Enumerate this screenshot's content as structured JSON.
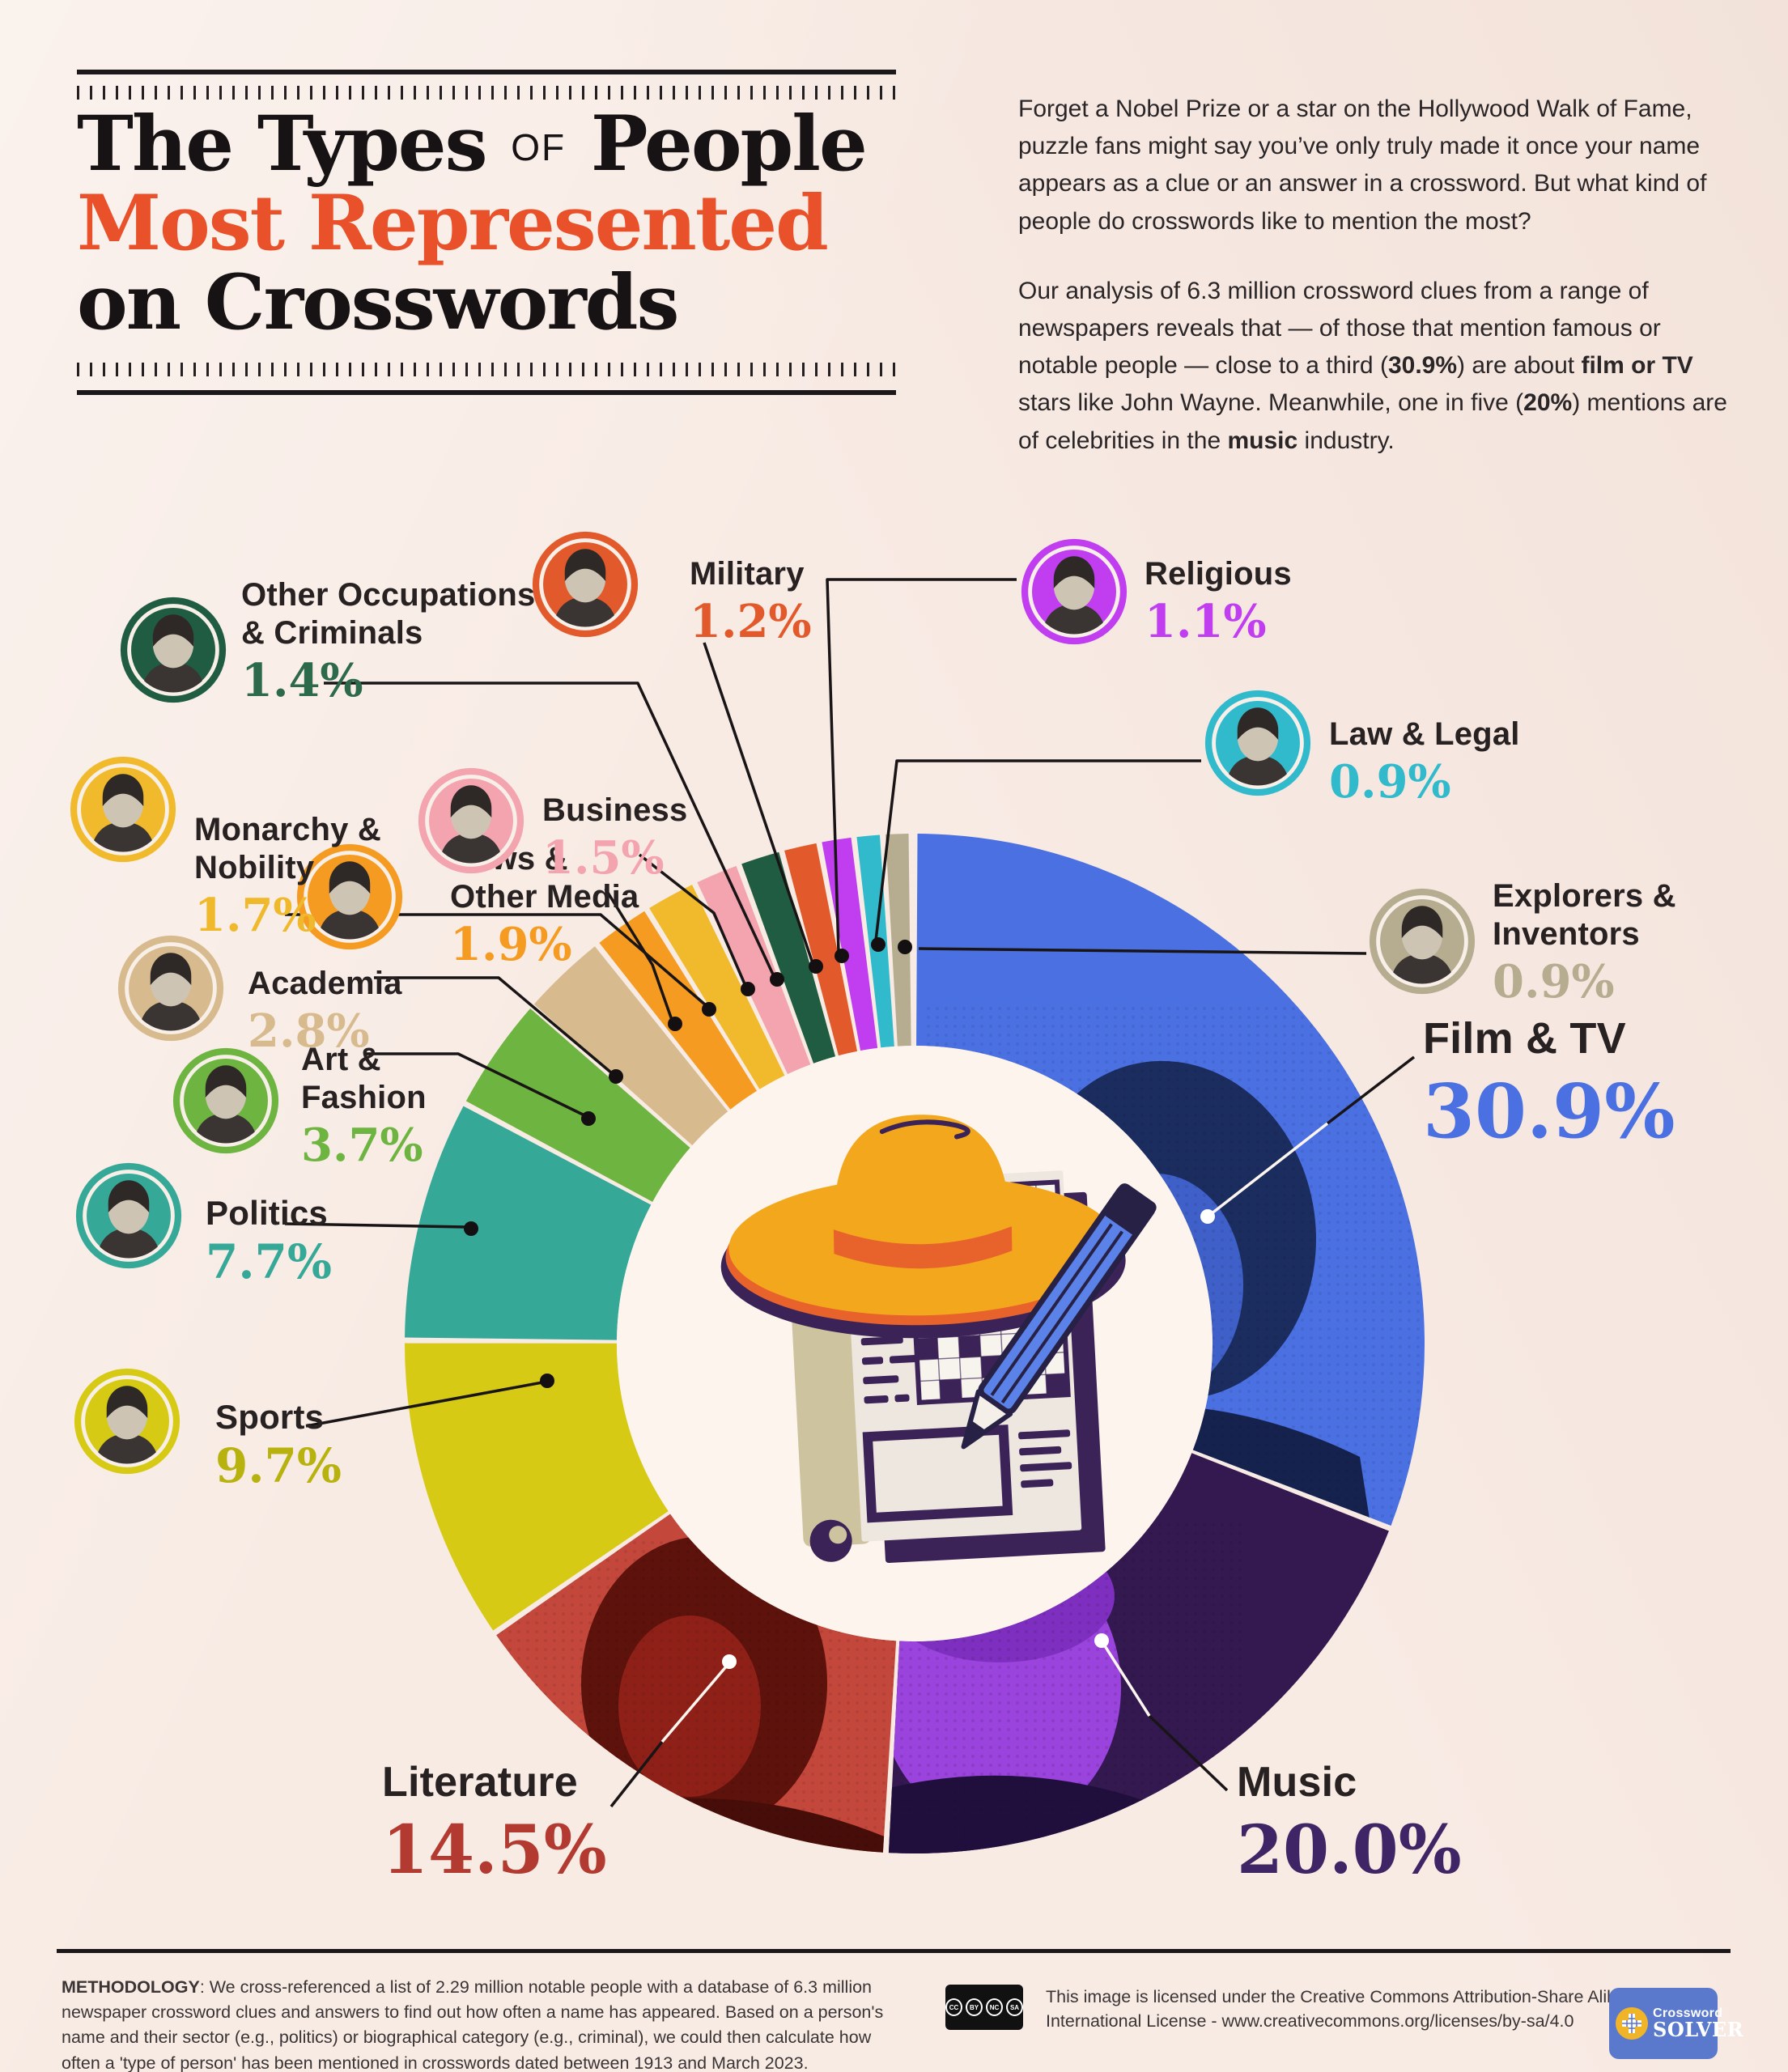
{
  "header": {
    "title": {
      "line1_a": "The Types",
      "line1_mid": "OF",
      "line1_b": "People",
      "line2": "Most Represented",
      "line3": "on Crosswords",
      "accent_color": "#e9512a"
    },
    "intro_p1": "Forget a Nobel Prize or a star on the Hollywood Walk of Fame, puzzle fans might say you’ve only truly made it once your name appears as a clue or an answer in a crossword. But what kind of people do crosswords like to mention the most?",
    "intro_p2": [
      {
        "t": "Our analysis of 6.3 million crossword clues from a range of newspapers reveals that — of those that mention famous or notable people — close to a third (",
        "b": false
      },
      {
        "t": "30.9%",
        "b": true
      },
      {
        "t": ") are about ",
        "b": false
      },
      {
        "t": "film or TV",
        "b": true
      },
      {
        "t": " stars like John Wayne. Meanwhile, one in five (",
        "b": false
      },
      {
        "t": "20%",
        "b": true
      },
      {
        "t": ") mentions are of celebrities in the ",
        "b": false
      },
      {
        "t": "music",
        "b": true
      },
      {
        "t": " industry.",
        "b": false
      }
    ]
  },
  "chart_data": {
    "type": "pie",
    "title": "The Types of People Most Represented on Crosswords",
    "unit": "%",
    "donut": true,
    "legend_position": "callouts-around-donut",
    "slices": [
      {
        "label": "Film & TV",
        "label_lines": [
          "Film & TV"
        ],
        "value": 30.9,
        "pct_text": "30.9%",
        "color": "#4a70e2",
        "pct_color": "#4a70e2"
      },
      {
        "label": "Music",
        "label_lines": [
          "Music"
        ],
        "value": 20.0,
        "pct_text": "20.0%",
        "color": "#33194f",
        "pct_color": "#3f2566"
      },
      {
        "label": "Literature",
        "label_lines": [
          "Literature"
        ],
        "value": 14.5,
        "pct_text": "14.5%",
        "color": "#c4473b",
        "pct_color": "#b23a30"
      },
      {
        "label": "Sports",
        "label_lines": [
          "Sports"
        ],
        "value": 9.7,
        "pct_text": "9.7%",
        "color": "#d7ca14",
        "pct_color": "#b8b20e"
      },
      {
        "label": "Politics",
        "label_lines": [
          "Politics"
        ],
        "value": 7.7,
        "pct_text": "7.7%",
        "color": "#36a897",
        "pct_color": "#36a897"
      },
      {
        "label": "Art & Fashion",
        "label_lines": [
          "Art &",
          "Fashion"
        ],
        "value": 3.7,
        "pct_text": "3.7%",
        "color": "#6db440",
        "pct_color": "#6db440"
      },
      {
        "label": "Academia",
        "label_lines": [
          "Academia"
        ],
        "value": 2.8,
        "pct_text": "2.8%",
        "color": "#d7bb8e",
        "pct_color": "#d7bb8e"
      },
      {
        "label": "News & Other Media",
        "label_lines": [
          "News &",
          "Other Media"
        ],
        "value": 1.9,
        "pct_text": "1.9%",
        "color": "#f69b21",
        "pct_color": "#f69b21"
      },
      {
        "label": "Monarchy & Nobility",
        "label_lines": [
          "Monarchy &",
          "Nobility"
        ],
        "value": 1.7,
        "pct_text": "1.7%",
        "color": "#f1ba2c",
        "pct_color": "#efb92b"
      },
      {
        "label": "Business",
        "label_lines": [
          "Business"
        ],
        "value": 1.5,
        "pct_text": "1.5%",
        "color": "#f3a4ae",
        "pct_color": "#f3a4ae"
      },
      {
        "label": "Other Occupations & Criminals",
        "label_lines": [
          "Other Occupations",
          "& Criminals"
        ],
        "value": 1.4,
        "pct_text": "1.4%",
        "color": "#205c41",
        "pct_color": "#2c6a4b"
      },
      {
        "label": "Military",
        "label_lines": [
          "Military"
        ],
        "value": 1.2,
        "pct_text": "1.2%",
        "color": "#e25a2c",
        "pct_color": "#e25a2c"
      },
      {
        "label": "Religious",
        "label_lines": [
          "Religious"
        ],
        "value": 1.1,
        "pct_text": "1.1%",
        "color": "#c03df0",
        "pct_color": "#c03df0"
      },
      {
        "label": "Law & Legal",
        "label_lines": [
          "Law & Legal"
        ],
        "value": 0.9,
        "pct_text": "0.9%",
        "color": "#30bacc",
        "pct_color": "#30bacc"
      },
      {
        "label": "Explorers & Inventors",
        "label_lines": [
          "Explorers &",
          "Inventors"
        ],
        "value": 0.9,
        "pct_text": "0.9%",
        "color": "#b6ac90",
        "pct_color": "#b6ac90"
      }
    ]
  },
  "footer": {
    "methodology": [
      {
        "t": "METHODOLOGY",
        "b": true
      },
      {
        "t": ": We cross-referenced a list of 2.29 million notable people with a database of 6.3 million newspaper crossword clues and answers to find out how often a name has appeared. Based on a person's name and their sector (e.g., politics) or biographical category (e.g., criminal), we could then calculate how often a 'type of person' has been mentioned in crosswords dated between 1913 and March 2023.",
        "b": false
      }
    ],
    "license": "This image is licensed under the Creative Commons Attribution-Share Alike 4.0 International License - www.creativecommons.org/licenses/by-sa/4.0",
    "cc": [
      "CC",
      "BY",
      "NC",
      "SA"
    ],
    "logo": {
      "top": "Crossword",
      "bottom": "SOLVER"
    }
  }
}
